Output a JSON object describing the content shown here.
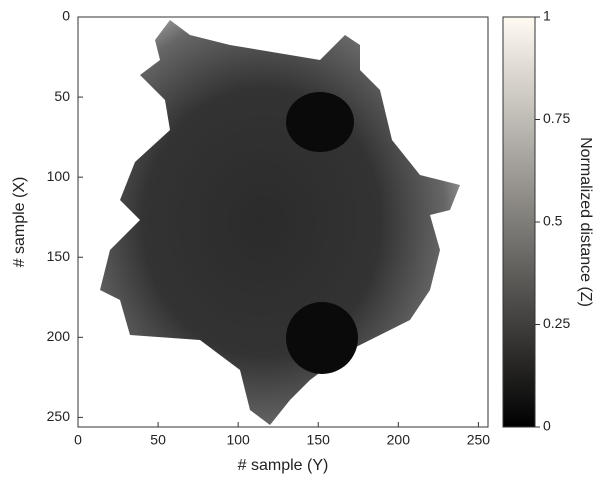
{
  "chart_data": {
    "type": "heatmap",
    "x_label": "# sample (Y)",
    "y_label": "# sample (X)",
    "colorbar_label": "Normalized distance (Z)",
    "xlim": [
      0,
      256
    ],
    "ylim": [
      256,
      0
    ],
    "xticks": [
      0,
      50,
      100,
      150,
      200,
      250
    ],
    "yticks": [
      0,
      50,
      100,
      150,
      200,
      250
    ],
    "clim": [
      0,
      1
    ],
    "cticks": [
      0,
      0.25,
      0.5,
      0.75,
      1
    ],
    "colormap": [
      "#000000",
      "#fffaf2"
    ]
  }
}
